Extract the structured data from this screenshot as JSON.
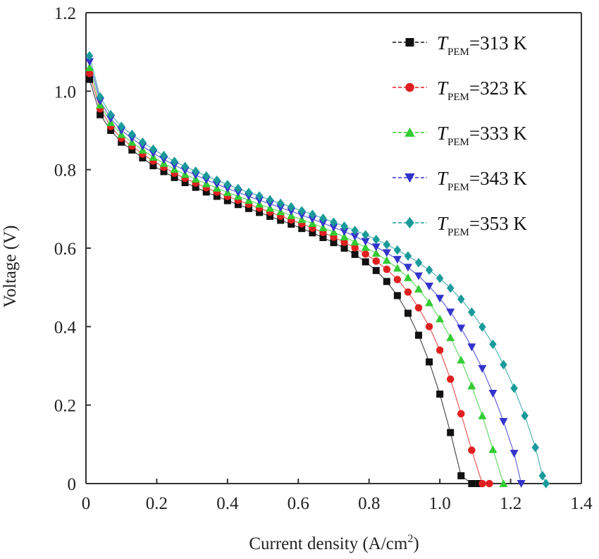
{
  "chart_data": {
    "type": "line",
    "title": "",
    "xlabel": "Current density (A/cm",
    "xlabel_sup": "2",
    "xlabel_end": ")",
    "ylabel": "Voltage (V)",
    "xlim": [
      0,
      1.4
    ],
    "ylim": [
      0,
      1.2
    ],
    "xticks": [
      0,
      0.2,
      0.4,
      0.6,
      0.8,
      1.0,
      1.2,
      1.4
    ],
    "xtick_labels": [
      "0",
      "0.2",
      "0.4",
      "0.6",
      "0.8",
      "1.0",
      "1.2",
      "1.4"
    ],
    "yticks": [
      0,
      0.2,
      0.4,
      0.6,
      0.8,
      1.0,
      1.2
    ],
    "ytick_labels": [
      "0",
      "0.2",
      "0.4",
      "0.6",
      "0.8",
      "1.0",
      "1.2"
    ],
    "grid": false,
    "legend_position": "top-right",
    "series": [
      {
        "name": "T_PEM=313 K",
        "label_T": "T",
        "label_sub": "PEM",
        "label_rest": "=313 K",
        "color": "#111111",
        "marker": "square",
        "x": [
          0.01,
          0.04,
          0.07,
          0.1,
          0.13,
          0.16,
          0.19,
          0.22,
          0.25,
          0.28,
          0.31,
          0.34,
          0.37,
          0.4,
          0.43,
          0.46,
          0.49,
          0.52,
          0.55,
          0.58,
          0.61,
          0.64,
          0.67,
          0.7,
          0.73,
          0.76,
          0.79,
          0.82,
          0.85,
          0.88,
          0.91,
          0.94,
          0.97,
          1.0,
          1.03,
          1.06,
          1.09,
          1.11
        ],
        "y": [
          1.03,
          0.94,
          0.9,
          0.87,
          0.85,
          0.83,
          0.81,
          0.795,
          0.78,
          0.767,
          0.755,
          0.743,
          0.732,
          0.721,
          0.711,
          0.701,
          0.691,
          0.681,
          0.671,
          0.661,
          0.65,
          0.639,
          0.627,
          0.614,
          0.6,
          0.584,
          0.565,
          0.543,
          0.515,
          0.479,
          0.434,
          0.378,
          0.31,
          0.228,
          0.13,
          0.02,
          0.0,
          0.0
        ]
      },
      {
        "name": "T_PEM=323 K",
        "label_T": "T",
        "label_sub": "PEM",
        "label_rest": "=323 K",
        "color": "#e02020",
        "marker": "circle",
        "x": [
          0.01,
          0.04,
          0.07,
          0.1,
          0.13,
          0.16,
          0.19,
          0.22,
          0.25,
          0.28,
          0.31,
          0.34,
          0.37,
          0.4,
          0.43,
          0.46,
          0.49,
          0.52,
          0.55,
          0.58,
          0.61,
          0.64,
          0.67,
          0.7,
          0.73,
          0.76,
          0.79,
          0.82,
          0.85,
          0.88,
          0.91,
          0.94,
          0.97,
          1.0,
          1.03,
          1.06,
          1.09,
          1.12,
          1.14
        ],
        "y": [
          1.045,
          0.955,
          0.91,
          0.88,
          0.86,
          0.84,
          0.822,
          0.806,
          0.791,
          0.778,
          0.766,
          0.754,
          0.743,
          0.732,
          0.722,
          0.712,
          0.702,
          0.692,
          0.682,
          0.672,
          0.662,
          0.651,
          0.64,
          0.628,
          0.615,
          0.601,
          0.585,
          0.567,
          0.546,
          0.52,
          0.488,
          0.448,
          0.4,
          0.34,
          0.266,
          0.178,
          0.085,
          0.0,
          0.0
        ]
      },
      {
        "name": "T_PEM=333 K",
        "label_T": "T",
        "label_sub": "PEM",
        "label_rest": "=333 K",
        "color": "#33cc33",
        "marker": "triangle-up",
        "x": [
          0.01,
          0.04,
          0.07,
          0.1,
          0.13,
          0.16,
          0.19,
          0.22,
          0.25,
          0.28,
          0.31,
          0.34,
          0.37,
          0.4,
          0.43,
          0.46,
          0.49,
          0.52,
          0.55,
          0.58,
          0.61,
          0.64,
          0.67,
          0.7,
          0.73,
          0.76,
          0.79,
          0.82,
          0.85,
          0.88,
          0.91,
          0.94,
          0.97,
          1.0,
          1.03,
          1.06,
          1.09,
          1.12,
          1.15,
          1.18
        ],
        "y": [
          1.06,
          0.965,
          0.92,
          0.89,
          0.87,
          0.85,
          0.832,
          0.816,
          0.801,
          0.788,
          0.776,
          0.764,
          0.753,
          0.742,
          0.732,
          0.722,
          0.712,
          0.702,
          0.693,
          0.683,
          0.673,
          0.663,
          0.652,
          0.641,
          0.629,
          0.616,
          0.602,
          0.587,
          0.569,
          0.549,
          0.525,
          0.496,
          0.461,
          0.42,
          0.372,
          0.315,
          0.249,
          0.173,
          0.087,
          0.0
        ]
      },
      {
        "name": "T_PEM=343 K",
        "label_T": "T",
        "label_sub": "PEM",
        "label_rest": "=343 K",
        "color": "#3333cc",
        "marker": "triangle-down",
        "x": [
          0.01,
          0.04,
          0.07,
          0.1,
          0.13,
          0.16,
          0.19,
          0.22,
          0.25,
          0.28,
          0.31,
          0.34,
          0.37,
          0.4,
          0.43,
          0.46,
          0.49,
          0.52,
          0.55,
          0.58,
          0.61,
          0.64,
          0.67,
          0.7,
          0.73,
          0.76,
          0.79,
          0.82,
          0.85,
          0.88,
          0.91,
          0.94,
          0.97,
          1.0,
          1.03,
          1.06,
          1.09,
          1.12,
          1.15,
          1.18,
          1.21,
          1.23
        ],
        "y": [
          1.075,
          0.975,
          0.93,
          0.9,
          0.88,
          0.86,
          0.842,
          0.826,
          0.811,
          0.798,
          0.786,
          0.774,
          0.763,
          0.752,
          0.742,
          0.732,
          0.722,
          0.713,
          0.703,
          0.694,
          0.684,
          0.674,
          0.664,
          0.653,
          0.642,
          0.63,
          0.617,
          0.603,
          0.588,
          0.571,
          0.551,
          0.529,
          0.503,
          0.472,
          0.437,
          0.396,
          0.348,
          0.293,
          0.23,
          0.158,
          0.077,
          0.0
        ]
      },
      {
        "name": "T_PEM=353 K",
        "label_T": "T",
        "label_sub": "PEM",
        "label_rest": "=353 K",
        "color": "#1a9a9a",
        "marker": "diamond",
        "x": [
          0.01,
          0.04,
          0.07,
          0.1,
          0.13,
          0.16,
          0.19,
          0.22,
          0.25,
          0.28,
          0.31,
          0.34,
          0.37,
          0.4,
          0.43,
          0.46,
          0.49,
          0.52,
          0.55,
          0.58,
          0.61,
          0.64,
          0.67,
          0.7,
          0.73,
          0.76,
          0.79,
          0.82,
          0.85,
          0.88,
          0.91,
          0.94,
          0.97,
          1.0,
          1.03,
          1.06,
          1.09,
          1.12,
          1.15,
          1.18,
          1.21,
          1.24,
          1.27,
          1.29,
          1.3
        ],
        "y": [
          1.09,
          0.985,
          0.94,
          0.91,
          0.89,
          0.87,
          0.852,
          0.836,
          0.821,
          0.808,
          0.796,
          0.784,
          0.773,
          0.762,
          0.752,
          0.742,
          0.733,
          0.723,
          0.714,
          0.705,
          0.695,
          0.686,
          0.676,
          0.666,
          0.656,
          0.645,
          0.634,
          0.622,
          0.609,
          0.595,
          0.58,
          0.563,
          0.544,
          0.523,
          0.498,
          0.47,
          0.437,
          0.399,
          0.355,
          0.303,
          0.243,
          0.173,
          0.092,
          0.02,
          0.0
        ]
      }
    ]
  }
}
